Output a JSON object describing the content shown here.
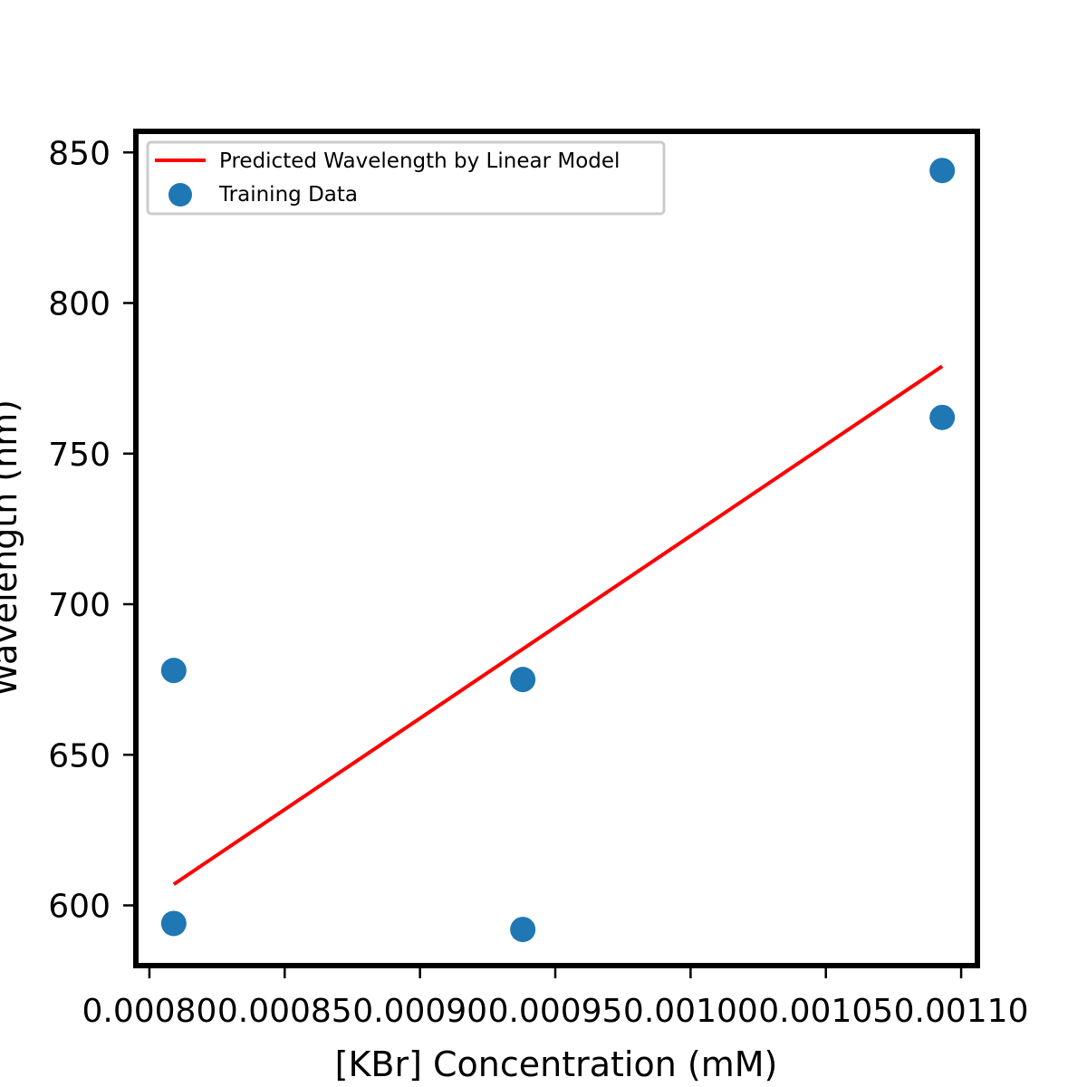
{
  "chart_data": {
    "type": "scatter",
    "title": "",
    "xlabel": "[KBr] Concentration (mM)",
    "ylabel": "Wavelength (nm)",
    "xlim": [
      0.000795,
      0.001106
    ],
    "ylim": [
      580,
      857
    ],
    "x_ticks": [
      0.0008,
      0.00085,
      0.0009,
      0.00095,
      0.001,
      0.00105,
      0.0011
    ],
    "x_tick_labels": [
      "0.00080",
      "0.00085",
      "0.00090",
      "0.00095",
      "0.00100",
      "0.00105",
      "0.00110"
    ],
    "y_ticks": [
      600,
      650,
      700,
      750,
      800,
      850
    ],
    "y_tick_labels": [
      "600",
      "650",
      "700",
      "750",
      "800",
      "850"
    ],
    "grid": false,
    "legend_position": "top-left",
    "series": [
      {
        "name": "Predicted Wavelength by Linear Model",
        "kind": "line",
        "color": "#ff0000",
        "points": [
          {
            "x": 0.000809,
            "y": 607
          },
          {
            "x": 0.001093,
            "y": 779
          }
        ]
      },
      {
        "name": "Training Data",
        "kind": "scatter",
        "color": "#1f77b4",
        "points": [
          {
            "x": 0.000809,
            "y": 678
          },
          {
            "x": 0.000809,
            "y": 594
          },
          {
            "x": 0.000938,
            "y": 675
          },
          {
            "x": 0.000938,
            "y": 592
          },
          {
            "x": 0.001093,
            "y": 844
          },
          {
            "x": 0.001093,
            "y": 762
          }
        ]
      }
    ]
  }
}
